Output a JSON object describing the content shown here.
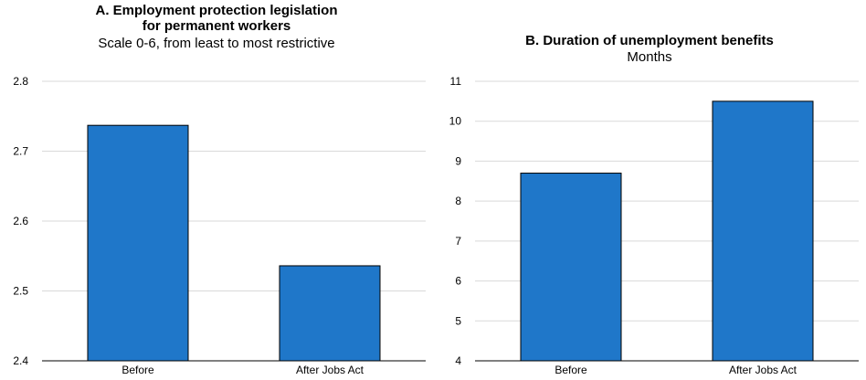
{
  "chart_data": [
    {
      "type": "bar",
      "title_lines": [
        "A. Employment protection legislation",
        "for permanent workers"
      ],
      "subtitle": "Scale 0-6, from least to most restrictive",
      "categories": [
        "Before",
        "After Jobs Act"
      ],
      "values": [
        2.737,
        2.536
      ],
      "ylim": [
        2.4,
        2.8
      ],
      "yticks": [
        "2.4",
        "2.5",
        "2.6",
        "2.7",
        "2.8"
      ],
      "grid": true,
      "bar_color": "#1f77c9"
    },
    {
      "type": "bar",
      "title_lines": [
        "B. Duration of unemployment benefits"
      ],
      "subtitle": "Months",
      "categories": [
        "Before",
        "After Jobs Act"
      ],
      "values": [
        8.7,
        10.5
      ],
      "ylim": [
        4,
        11
      ],
      "yticks": [
        "4",
        "5",
        "6",
        "7",
        "8",
        "9",
        "10",
        "11"
      ],
      "grid": true,
      "bar_color": "#1f77c9"
    }
  ]
}
